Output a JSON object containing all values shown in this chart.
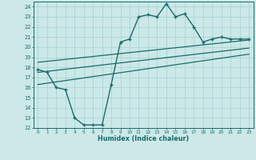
{
  "bg_color": "#cce8e8",
  "grid_color": "#b0d8d8",
  "line_color": "#1a6b6b",
  "xlabel": "Humidex (Indice chaleur)",
  "ylim": [
    12,
    24.5
  ],
  "xlim": [
    -0.5,
    23.5
  ],
  "yticks": [
    12,
    13,
    14,
    15,
    16,
    17,
    18,
    19,
    20,
    21,
    22,
    23,
    24
  ],
  "xticks": [
    0,
    1,
    2,
    3,
    4,
    5,
    6,
    7,
    8,
    9,
    10,
    11,
    12,
    13,
    14,
    15,
    16,
    17,
    18,
    19,
    20,
    21,
    22,
    23
  ],
  "curve_x": [
    0,
    1,
    2,
    3,
    4,
    5,
    6,
    7,
    8,
    9,
    10,
    11,
    12,
    13,
    14,
    15,
    16,
    17,
    18,
    19,
    20,
    21,
    22,
    23
  ],
  "curve_y": [
    17.8,
    17.5,
    16.0,
    15.8,
    13.0,
    12.3,
    12.3,
    12.3,
    16.3,
    20.5,
    20.8,
    23.0,
    23.2,
    23.0,
    24.3,
    23.0,
    23.3,
    22.0,
    20.5,
    20.8,
    21.0,
    20.8,
    20.8,
    20.8
  ],
  "trend1_x": [
    0,
    23
  ],
  "trend1_y": [
    18.5,
    20.7
  ],
  "trend2_x": [
    0,
    23
  ],
  "trend2_y": [
    17.5,
    19.9
  ],
  "trend3_x": [
    0,
    23
  ],
  "trend3_y": [
    16.3,
    19.3
  ]
}
